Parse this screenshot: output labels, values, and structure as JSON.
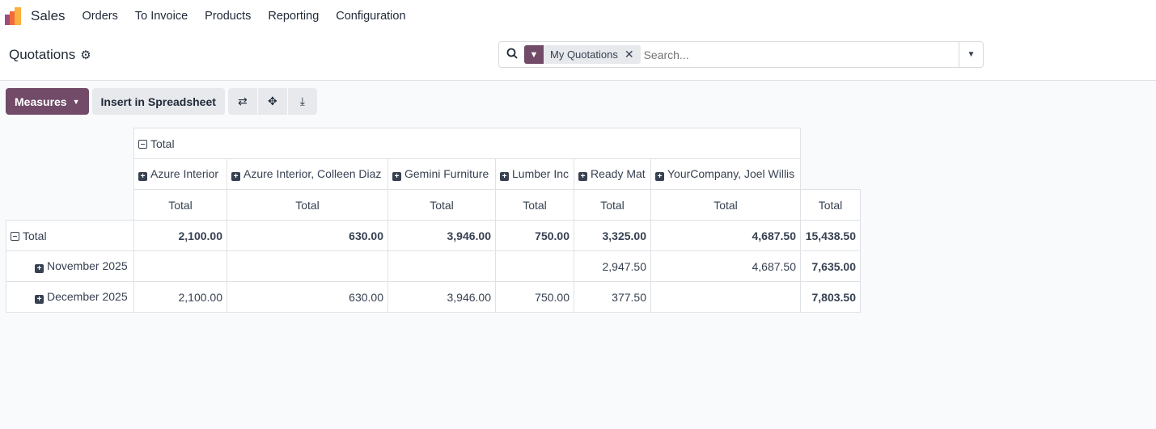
{
  "nav": {
    "app": "Sales",
    "menu": [
      "Orders",
      "To Invoice",
      "Products",
      "Reporting",
      "Configuration"
    ]
  },
  "page": {
    "title": "Quotations"
  },
  "search": {
    "facet": "My Quotations",
    "placeholder": "Search..."
  },
  "toolbar": {
    "measures": "Measures",
    "insert": "Insert in Spreadsheet"
  },
  "pivot": {
    "top_header": "Total",
    "columns": [
      "Azure Interior",
      "Azure Interior, Colleen Diaz",
      "Gemini Furniture",
      "Lumber Inc",
      "Ready Mat",
      "YourCompany, Joel Willis"
    ],
    "sub_header": "Total",
    "rows": [
      {
        "label": "Total",
        "values": [
          "2,100.00",
          "630.00",
          "3,946.00",
          "750.00",
          "3,325.00",
          "4,687.50",
          "15,438.50"
        ]
      },
      {
        "label": "November 2025",
        "values": [
          "",
          "",
          "",
          "",
          "2,947.50",
          "4,687.50",
          "7,635.00"
        ]
      },
      {
        "label": "December 2025",
        "values": [
          "2,100.00",
          "630.00",
          "3,946.00",
          "750.00",
          "377.50",
          "",
          "7,803.50"
        ]
      }
    ]
  }
}
